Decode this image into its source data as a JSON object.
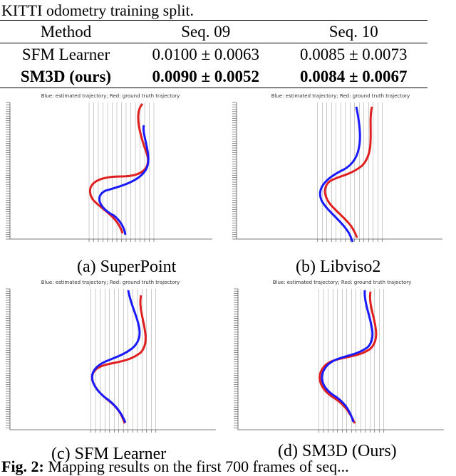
{
  "caption_top": "KITTI odometry training split.",
  "table": {
    "headers": [
      "Method",
      "Seq. 09",
      "Seq. 10"
    ],
    "rows": [
      {
        "method": "SFM Learner",
        "seq09": "0.0100 ± 0.0063",
        "seq10": "0.0085 ± 0.0073",
        "bold": false
      },
      {
        "method": "SM3D (ours)",
        "seq09": "0.0090 ± 0.0052",
        "seq10": "0.0084 ± 0.0067",
        "bold": true
      }
    ]
  },
  "plot_title": "Blue: estimated trajectory; Red: ground truth trajectory",
  "subfigures": [
    {
      "caption": "(a) SuperPoint"
    },
    {
      "caption": "(b) Libviso2"
    },
    {
      "caption": "(c) SFM Learner"
    },
    {
      "caption": "(d) SM3D (Ours)"
    }
  ],
  "fig_caption": {
    "label": "Fig. 2:",
    "text": " Mapping results on the first 700 frames of seq..."
  },
  "colors": {
    "estimated": "#1a1aff",
    "ground_truth": "#e02020",
    "grid": "#9a9a9a"
  }
}
